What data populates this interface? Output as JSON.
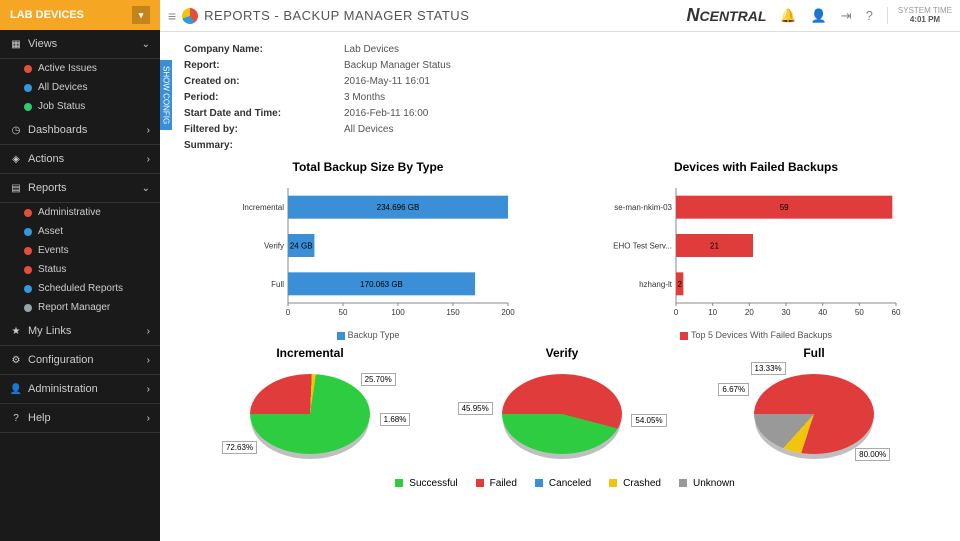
{
  "sidebar": {
    "header": "LAB DEVICES",
    "views_label": "Views",
    "view_items": [
      {
        "label": "Active Issues",
        "color": "#e74c3c"
      },
      {
        "label": "All Devices",
        "color": "#3498db"
      },
      {
        "label": "Job Status",
        "color": "#2ecc71"
      }
    ],
    "dashboards": "Dashboards",
    "actions": "Actions",
    "reports": "Reports",
    "report_items": [
      {
        "label": "Administrative",
        "color": "#e74c3c"
      },
      {
        "label": "Asset",
        "color": "#3498db"
      },
      {
        "label": "Events",
        "color": "#e74c3c"
      },
      {
        "label": "Status",
        "color": "#e74c3c"
      },
      {
        "label": "Scheduled Reports",
        "color": "#3498db"
      },
      {
        "label": "Report Manager",
        "color": "#95a5a6"
      }
    ],
    "mylinks": "My Links",
    "configuration": "Configuration",
    "administration": "Administration",
    "help": "Help"
  },
  "topbar": {
    "title": "REPORTS - BACKUP MANAGER STATUS",
    "brand_n": "N",
    "brand_rest": "CENTRAL",
    "systime_label": "SYSTEM TIME",
    "systime_value": "4:01 PM"
  },
  "show_config": "SHOW CONFIG",
  "meta": {
    "company_key": "Company Name:",
    "company_val": "Lab Devices",
    "report_key": "Report:",
    "report_val": "Backup Manager Status",
    "created_key": "Created on:",
    "created_val": "2016-May-11 16:01",
    "period_key": "Period:",
    "period_val": "3 Months",
    "start_key": "Start Date and Time:",
    "start_val": "2016-Feb-11 16:00",
    "filtered_key": "Filtered by:",
    "filtered_val": "All Devices",
    "summary_key": "Summary:"
  },
  "bar1": {
    "title": "Total Backup Size By Type",
    "type": "horizontal_bar",
    "categories": [
      "Incremental",
      "Verify",
      "Full"
    ],
    "values": [
      234.696,
      24,
      170.063
    ],
    "value_labels": [
      "234.696 GB",
      "24 GB",
      "170.063 GB"
    ],
    "bar_color": "#3b8fd6",
    "xlim": [
      0,
      200
    ],
    "xtick_step": 50,
    "xticks": [
      "0",
      "50",
      "100",
      "150",
      "200"
    ],
    "legend": "Backup Type",
    "axis_color": "#888",
    "text_color": "#333",
    "label_fontsize": 9
  },
  "bar2": {
    "title": "Devices with Failed Backups",
    "type": "horizontal_bar",
    "categories": [
      "se-man-nkim-03",
      "EHO Test Serv...",
      "hzhang-lt"
    ],
    "values": [
      59,
      21,
      2
    ],
    "value_labels": [
      "59",
      "21",
      "2"
    ],
    "bar_color": "#e03c3c",
    "xlim": [
      0,
      60
    ],
    "xtick_step": 10,
    "xticks": [
      "0",
      "10",
      "20",
      "30",
      "40",
      "50",
      "60"
    ],
    "legend": "Top 5 Devices With Failed Backups",
    "axis_color": "#888",
    "text_color": "#333",
    "label_fontsize": 9
  },
  "pies": {
    "incremental": {
      "title": "Incremental",
      "slices": [
        {
          "label": "25.70%",
          "value": 25.7,
          "color": "#e03c3c"
        },
        {
          "label": "1.68%",
          "value": 1.68,
          "color": "#f1c40f"
        },
        {
          "label": "72.63%",
          "value": 72.63,
          "color": "#2ecc40"
        }
      ]
    },
    "verify": {
      "title": "Verify",
      "slices": [
        {
          "label": "54.05%",
          "value": 54.05,
          "color": "#e03c3c"
        },
        {
          "label": "45.95%",
          "value": 45.95,
          "color": "#2ecc40"
        }
      ]
    },
    "full": {
      "title": "Full",
      "slices": [
        {
          "label": "80.00%",
          "value": 80.0,
          "color": "#e03c3c"
        },
        {
          "label": "6.67%",
          "value": 6.67,
          "color": "#f1c40f"
        },
        {
          "label": "13.33%",
          "value": 13.33,
          "color": "#999999"
        }
      ]
    }
  },
  "status_legend": {
    "items": [
      {
        "label": "Successful",
        "color": "#2ecc40"
      },
      {
        "label": "Failed",
        "color": "#e03c3c"
      },
      {
        "label": "Canceled",
        "color": "#3b8fd6"
      },
      {
        "label": "Crashed",
        "color": "#f1c40f"
      },
      {
        "label": "Unknown",
        "color": "#999999"
      }
    ]
  }
}
